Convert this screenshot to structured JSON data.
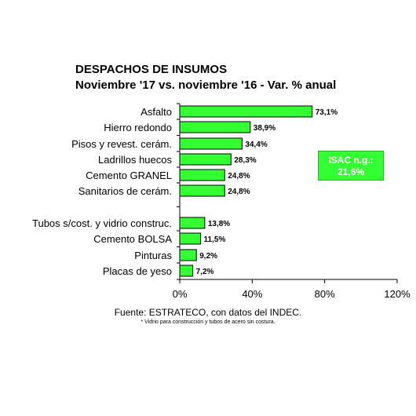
{
  "colors": {
    "bar": "#33ff33",
    "bar_stroke": "#000000",
    "box": "#33ff33",
    "box_text": "#ffffff"
  },
  "callout": {
    "line1": "ISAC n.g.:",
    "line2": "21,6%"
  },
  "source": "Fuente: ESTRATECO, con datos del INDEC.",
  "footnote": "* Vidrio para construcción y tubos de acero sin costura.",
  "chart_data": {
    "type": "bar",
    "orientation": "horizontal",
    "title": "DESPACHOS DE INSUMOS",
    "subtitle": "Noviembre '17 vs. noviembre '16 - Var. % anual",
    "categories": [
      "Asfalto",
      "Hierro redondo",
      "Pisos y revest. cerám.",
      "Ladrillos huecos",
      "Cemento GRANEL",
      "Sanitarios de cerám.",
      "Tubos s/cost. y vidrio construc.",
      "Cemento BOLSA",
      "Pinturas",
      "Placas de yeso"
    ],
    "values": [
      73.1,
      38.9,
      34.4,
      28.3,
      24.8,
      24.8,
      13.8,
      11.5,
      9.2,
      7.2
    ],
    "value_labels": [
      "73,1%",
      "38,9%",
      "34,4%",
      "28,3%",
      "24,8%",
      "24,8%",
      "13,8%",
      "11,5%",
      "9,2%",
      "7,2%"
    ],
    "xlim": [
      0,
      120
    ],
    "xticks": [
      0,
      40,
      80,
      120
    ],
    "xtick_labels": [
      "0%",
      "40%",
      "80%",
      "120%"
    ],
    "grid": false,
    "legend": "none"
  }
}
